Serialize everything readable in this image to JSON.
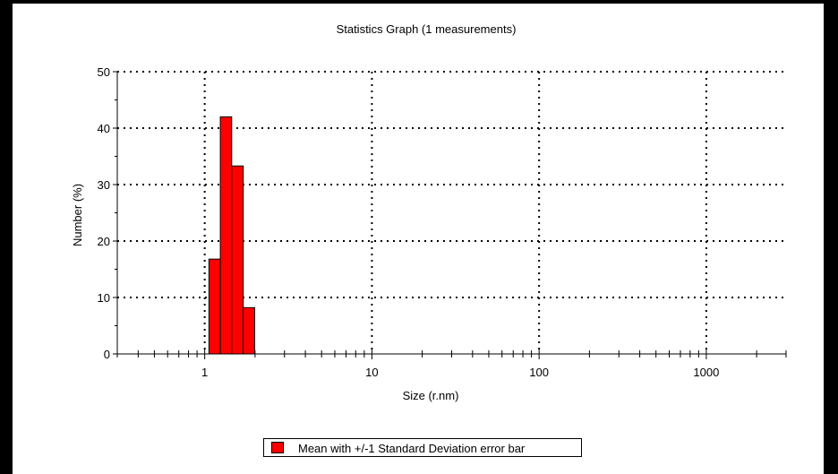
{
  "chart_data": {
    "type": "bar",
    "title": "Statistics Graph (1 measurements)",
    "xlabel": "Size (r.nm)",
    "ylabel": "Number (%)",
    "x_scale": "log",
    "xlim": [
      0.3,
      3000
    ],
    "ylim": [
      0,
      50
    ],
    "x_ticks": [
      1,
      10,
      100,
      1000
    ],
    "y_ticks": [
      0,
      10,
      20,
      30,
      40,
      50
    ],
    "grid": true,
    "legend_position": "bottom-center",
    "series": [
      {
        "name": "Mean with +/-1 Standard Deviation error bar",
        "color": "#ff0000",
        "bins": [
          {
            "x0": 1.06,
            "x1": 1.24,
            "value": 16.8
          },
          {
            "x0": 1.24,
            "x1": 1.45,
            "value": 42.0
          },
          {
            "x0": 1.45,
            "x1": 1.7,
            "value": 33.3
          },
          {
            "x0": 1.7,
            "x1": 1.99,
            "value": 8.2
          }
        ]
      }
    ]
  }
}
